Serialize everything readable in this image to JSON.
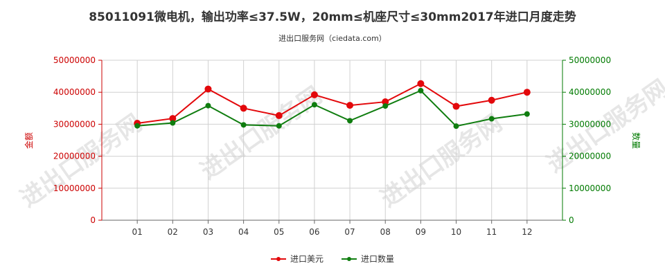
{
  "title": "85011091微电机，输出功率≤37.5W，20mm≤机座尺寸≤30mm2017年进口月度走势",
  "subtitle": "进出口服务网（ciedata.com）",
  "watermark": "进出口服务网",
  "colors": {
    "value_series": "#e3080b",
    "quantity_series": "#0f7d0f",
    "left_axis": "#cc0000",
    "right_axis": "#007a00",
    "grid": "#d0d0d0"
  },
  "chart_data": {
    "type": "line",
    "categories": [
      "01",
      "02",
      "03",
      "04",
      "05",
      "06",
      "07",
      "08",
      "09",
      "10",
      "11",
      "12"
    ],
    "left_axis": {
      "label": "金额",
      "ylim": [
        0,
        50000000
      ],
      "ticks": [
        "0",
        "10000000",
        "20000000",
        "30000000",
        "40000000",
        "50000000"
      ]
    },
    "right_axis": {
      "label": "数量",
      "ylim": [
        0,
        50000000
      ],
      "ticks": [
        "0",
        "10000000",
        "20000000",
        "30000000",
        "40000000",
        "50000000"
      ]
    },
    "series": [
      {
        "name": "进口美元",
        "axis": "left",
        "values": [
          30300000,
          31800000,
          41000000,
          35000000,
          32700000,
          39200000,
          35900000,
          37000000,
          42700000,
          35600000,
          37500000,
          40000000
        ]
      },
      {
        "name": "进口数量",
        "axis": "right",
        "values": [
          29500000,
          30400000,
          35800000,
          29800000,
          29500000,
          36100000,
          31100000,
          35700000,
          40500000,
          29400000,
          31700000,
          33200000
        ]
      }
    ],
    "grid": true,
    "legend_position": "bottom-center"
  }
}
